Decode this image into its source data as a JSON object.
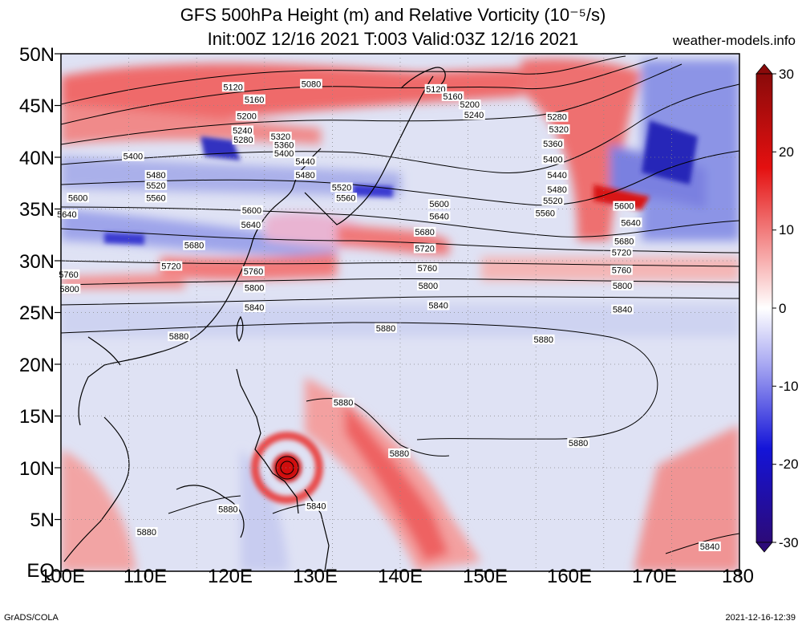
{
  "title_line1": "GFS 500hPa Height (m) and Relative Vorticity (10⁻⁵/s)",
  "title_line2": "Init:00Z 12/16 2021  T:003  Valid:03Z 12/16 2021",
  "site": "weather-models.info",
  "footer_left": "GrADS/COLA",
  "footer_right": "2021-12-16-12:39",
  "lat_labels": [
    "50N",
    "45N",
    "40N",
    "35N",
    "30N",
    "25N",
    "20N",
    "15N",
    "10N",
    "5N",
    "EQ"
  ],
  "lon_labels": [
    "100E",
    "110E",
    "120E",
    "130E",
    "140E",
    "150E",
    "160E",
    "170E",
    "180"
  ],
  "colorbar": {
    "min": -30,
    "max": 30,
    "labels": [
      "30",
      "20",
      "10",
      "0",
      "-10",
      "-20",
      "-30"
    ],
    "colors": {
      "high": "#b01010",
      "mid": "#ffffff",
      "low": "#1a10a0"
    }
  },
  "contour_labels": [
    {
      "text": "5080",
      "lon": 129.5,
      "lat": 47.1
    },
    {
      "text": "5120",
      "lon": 120.3,
      "lat": 46.8
    },
    {
      "text": "5120",
      "lon": 144.2,
      "lat": 46.6
    },
    {
      "text": "5160",
      "lon": 122.8,
      "lat": 45.6
    },
    {
      "text": "5160",
      "lon": 146.2,
      "lat": 45.9
    },
    {
      "text": "5200",
      "lon": 148.2,
      "lat": 45.1
    },
    {
      "text": "5200",
      "lon": 121.9,
      "lat": 44.0
    },
    {
      "text": "5240",
      "lon": 148.7,
      "lat": 44.1
    },
    {
      "text": "5240",
      "lon": 121.4,
      "lat": 42.6
    },
    {
      "text": "5280",
      "lon": 121.5,
      "lat": 41.7
    },
    {
      "text": "5280",
      "lon": 158.5,
      "lat": 43.9
    },
    {
      "text": "5320",
      "lon": 125.9,
      "lat": 42.0
    },
    {
      "text": "5320",
      "lon": 158.7,
      "lat": 42.7
    },
    {
      "text": "5360",
      "lon": 126.3,
      "lat": 41.2
    },
    {
      "text": "5360",
      "lon": 158.0,
      "lat": 41.3
    },
    {
      "text": "5400",
      "lon": 108.5,
      "lat": 40.1
    },
    {
      "text": "5400",
      "lon": 126.3,
      "lat": 40.4
    },
    {
      "text": "5400",
      "lon": 158.0,
      "lat": 39.8
    },
    {
      "text": "5440",
      "lon": 128.8,
      "lat": 39.6
    },
    {
      "text": "5440",
      "lon": 158.5,
      "lat": 38.3
    },
    {
      "text": "5480",
      "lon": 111.2,
      "lat": 38.3
    },
    {
      "text": "5480",
      "lon": 128.8,
      "lat": 38.3
    },
    {
      "text": "5480",
      "lon": 158.5,
      "lat": 36.9
    },
    {
      "text": "5520",
      "lon": 111.2,
      "lat": 37.3
    },
    {
      "text": "5520",
      "lon": 133.1,
      "lat": 37.1
    },
    {
      "text": "5520",
      "lon": 158.0,
      "lat": 35.8
    },
    {
      "text": "5560",
      "lon": 111.2,
      "lat": 36.1
    },
    {
      "text": "5560",
      "lon": 133.6,
      "lat": 36.1
    },
    {
      "text": "5560",
      "lon": 157.1,
      "lat": 34.6
    },
    {
      "text": "5600",
      "lon": 102.0,
      "lat": 36.1
    },
    {
      "text": "5600",
      "lon": 122.5,
      "lat": 34.9
    },
    {
      "text": "5600",
      "lon": 144.6,
      "lat": 35.5
    },
    {
      "text": "5600",
      "lon": 166.4,
      "lat": 35.3
    },
    {
      "text": "5640",
      "lon": 100.7,
      "lat": 34.5
    },
    {
      "text": "5640",
      "lon": 122.4,
      "lat": 33.5
    },
    {
      "text": "5640",
      "lon": 144.6,
      "lat": 34.3
    },
    {
      "text": "5640",
      "lon": 167.2,
      "lat": 33.7
    },
    {
      "text": "5680",
      "lon": 115.7,
      "lat": 31.5
    },
    {
      "text": "5680",
      "lon": 142.9,
      "lat": 32.8
    },
    {
      "text": "5680",
      "lon": 166.4,
      "lat": 31.9
    },
    {
      "text": "5720",
      "lon": 113.0,
      "lat": 29.5
    },
    {
      "text": "5720",
      "lon": 142.9,
      "lat": 31.2
    },
    {
      "text": "5720",
      "lon": 166.1,
      "lat": 30.8
    },
    {
      "text": "5760",
      "lon": 100.9,
      "lat": 28.7
    },
    {
      "text": "5760",
      "lon": 122.7,
      "lat": 29.0
    },
    {
      "text": "5760",
      "lon": 143.2,
      "lat": 29.3
    },
    {
      "text": "5760",
      "lon": 166.1,
      "lat": 29.1
    },
    {
      "text": "5800",
      "lon": 101.0,
      "lat": 27.3
    },
    {
      "text": "5800",
      "lon": 122.8,
      "lat": 27.4
    },
    {
      "text": "5800",
      "lon": 143.3,
      "lat": 27.6
    },
    {
      "text": "5800",
      "lon": 166.2,
      "lat": 27.6
    },
    {
      "text": "5840",
      "lon": 122.8,
      "lat": 25.5
    },
    {
      "text": "5840",
      "lon": 144.5,
      "lat": 25.7
    },
    {
      "text": "5840",
      "lon": 166.2,
      "lat": 25.3
    },
    {
      "text": "5880",
      "lon": 113.9,
      "lat": 22.7
    },
    {
      "text": "5880",
      "lon": 138.3,
      "lat": 23.5
    },
    {
      "text": "5880",
      "lon": 156.9,
      "lat": 22.4
    },
    {
      "text": "5880",
      "lon": 133.3,
      "lat": 16.3
    },
    {
      "text": "5880",
      "lon": 139.9,
      "lat": 11.4
    },
    {
      "text": "5880",
      "lon": 161.0,
      "lat": 12.4
    },
    {
      "text": "5880",
      "lon": 119.7,
      "lat": 6.0
    },
    {
      "text": "5880",
      "lon": 110.1,
      "lat": 3.8
    },
    {
      "text": "5840",
      "lon": 130.1,
      "lat": 6.3
    },
    {
      "text": "5840",
      "lon": 176.5,
      "lat": 2.4
    }
  ]
}
